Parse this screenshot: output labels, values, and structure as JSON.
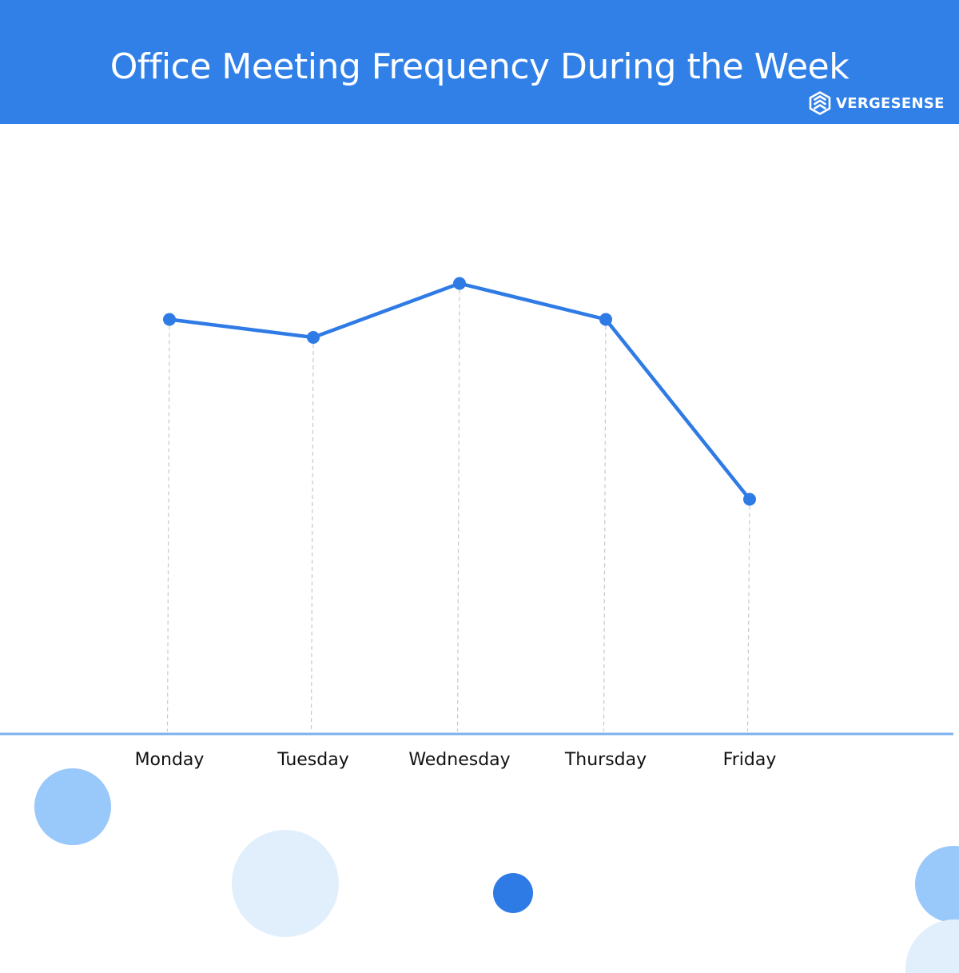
{
  "header": {
    "title": "Office Meeting Frequency During the Week",
    "brand_name": "VERGESENSE",
    "brand_icon": "vergesense-logo-icon"
  },
  "colors": {
    "header_background": "#3080e8",
    "line": "#2f7be6",
    "axis": "#7cb0ee",
    "guide": "#c8c8c8",
    "circle_light": "#99c8fb",
    "circle_pale": "#e1effc",
    "circle_dark": "#2f7be6"
  },
  "chart_data": {
    "type": "line",
    "title": "Office Meeting Frequency During the Week",
    "xlabel": "",
    "ylabel": "",
    "categories": [
      "Monday",
      "Tuesday",
      "Wednesday",
      "Thursday",
      "Friday"
    ],
    "values": [
      69,
      66,
      75,
      69,
      39
    ],
    "ylim": [
      0,
      100
    ],
    "y_axis_shown": false,
    "vertical_guides": "dashed",
    "grid": false,
    "legend": "none",
    "markers": "circle"
  }
}
